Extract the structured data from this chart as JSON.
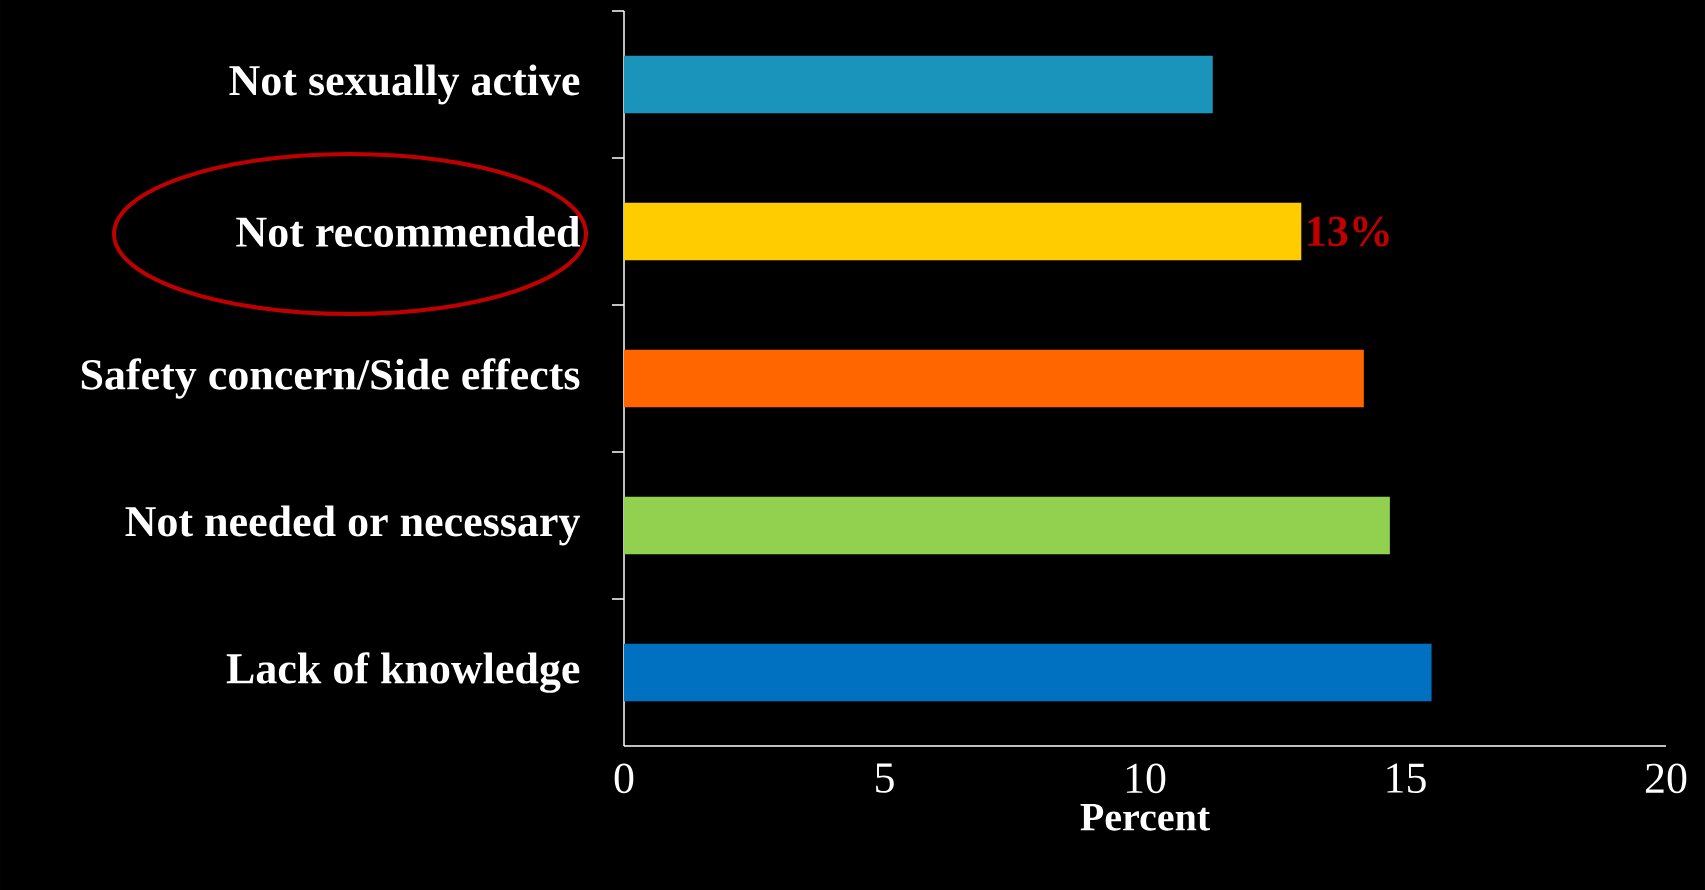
{
  "chart_data": {
    "type": "bar",
    "orientation": "horizontal",
    "xlabel": "Percent",
    "categories": [
      "Not sexually active",
      "Not recommended",
      "Safety concern/Side effects",
      "Not needed or necessary",
      "Lack of knowledge"
    ],
    "values": [
      11.3,
      13.0,
      14.2,
      14.7,
      15.5
    ],
    "colors": [
      "#1a94bb",
      "#ffcc00",
      "#ff6600",
      "#92d050",
      "#0070c0"
    ],
    "value_labels": [
      null,
      "13%",
      null,
      null,
      null
    ],
    "xlim": [
      0,
      20
    ],
    "xticks": [
      0,
      5,
      10,
      15,
      20
    ]
  }
}
